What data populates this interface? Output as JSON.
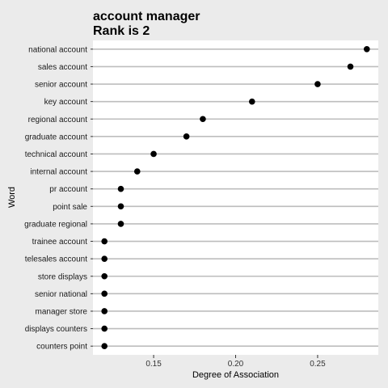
{
  "chart_data": {
    "type": "scatter",
    "title": "account manager",
    "subtitle": "Rank is 2",
    "xlabel": "Degree of Association",
    "ylabel": "Word",
    "xlim": [
      0.113,
      0.287
    ],
    "xticks": [
      0.15,
      0.2,
      0.25
    ],
    "xtick_labels": [
      "0.15",
      "0.20",
      "0.25"
    ],
    "grid": "horizontal",
    "point_color": "#000000",
    "categories": [
      "national account",
      "sales account",
      "senior account",
      "key account",
      "regional account",
      "graduate account",
      "technical account",
      "internal account",
      "pr account",
      "point sale",
      "graduate regional",
      "trainee account",
      "telesales account",
      "store displays",
      "senior national",
      "manager store",
      "displays counters",
      "counters point"
    ],
    "values": [
      0.28,
      0.27,
      0.25,
      0.21,
      0.18,
      0.17,
      0.15,
      0.14,
      0.13,
      0.13,
      0.13,
      0.12,
      0.12,
      0.12,
      0.12,
      0.12,
      0.12,
      0.12
    ]
  }
}
